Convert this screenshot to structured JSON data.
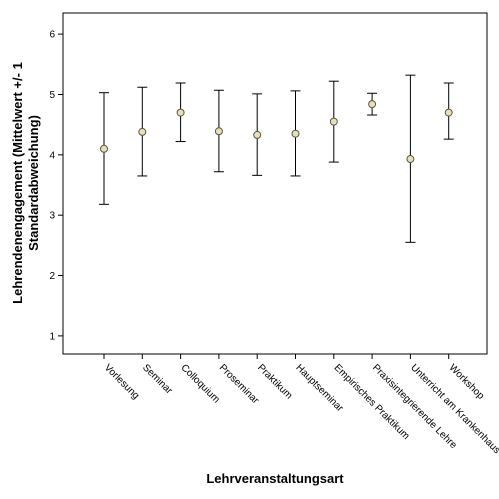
{
  "chart_data": {
    "type": "errorbar",
    "xlabel": "Lehrveranstaltungsart",
    "ylabel_lines": [
      "Lehrendenengagement (Mittelwert +/- 1",
      "Standardabweichung)"
    ],
    "ylim": [
      0.7,
      6.35
    ],
    "yticks": [
      1,
      2,
      3,
      4,
      5,
      6
    ],
    "grid": false,
    "categories": [
      "Vorlesung",
      "Seminar",
      "Colloquium",
      "Proseminar",
      "Praktikum",
      "Hauptseminar",
      "Empirisches Praktikum",
      "Praxisintegrierende Lehre",
      "Unterricht am Krankenhaus",
      "Workshop"
    ],
    "means": [
      4.1,
      4.38,
      4.7,
      4.39,
      4.33,
      4.35,
      4.55,
      4.84,
      3.93,
      4.7
    ],
    "lower": [
      3.18,
      3.65,
      4.22,
      3.72,
      3.66,
      3.65,
      3.88,
      4.66,
      2.55,
      4.26
    ],
    "upper": [
      5.03,
      5.12,
      5.19,
      5.07,
      5.01,
      5.06,
      5.22,
      5.02,
      5.32,
      5.19
    ],
    "colors": {
      "marker_fill": "#e8e0b0",
      "marker_stroke": "#555555",
      "line": "#000000"
    }
  }
}
